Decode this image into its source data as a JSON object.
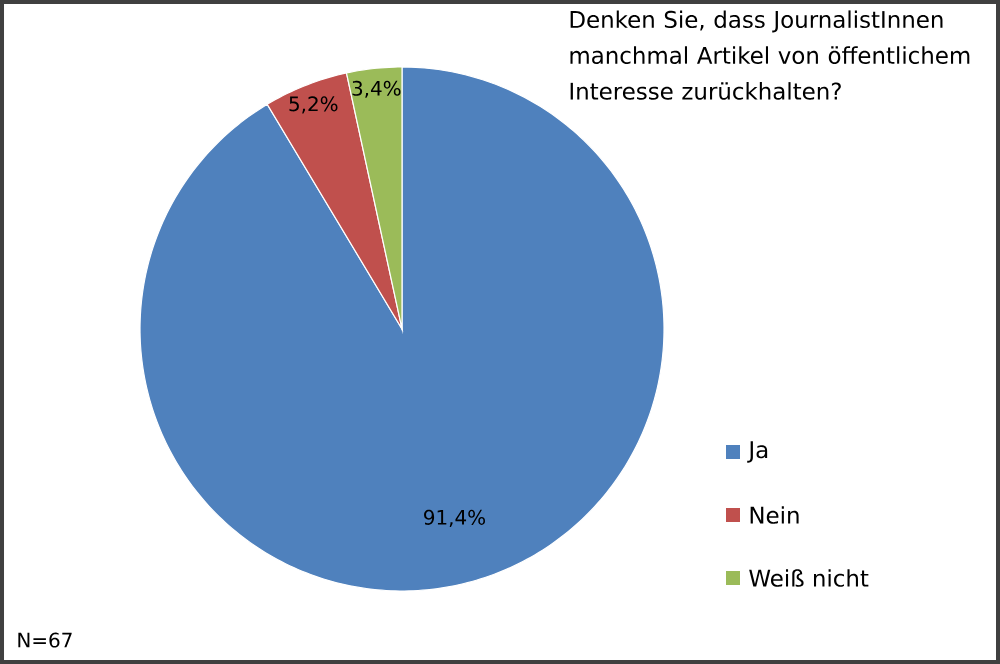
{
  "chart_data": {
    "type": "pie",
    "title": "Denken Sie, dass JournalistInnen manchmal Artikel von öffentlichem Interesse zurückhalten?",
    "categories": [
      "Ja",
      "Nein",
      "Weiß nicht"
    ],
    "values": [
      91.4,
      5.2,
      3.4
    ],
    "colors": [
      "#4f81bd",
      "#c0504d",
      "#9bbb59"
    ],
    "value_labels": [
      "91,4%",
      "5,2%",
      "3,4%"
    ],
    "legend": "right",
    "annotations": [
      "N=67"
    ]
  }
}
